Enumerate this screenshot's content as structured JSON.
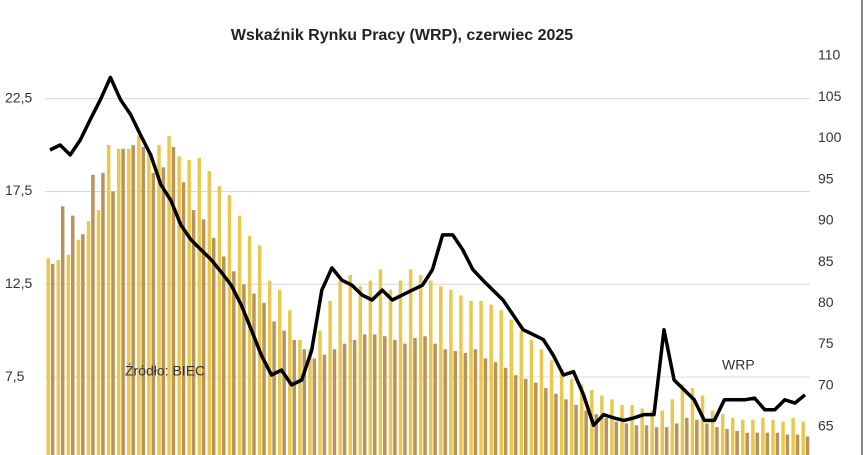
{
  "chart_data": {
    "type": "bar",
    "title": "Wskaźnik Rynku Pracy (WRP), czerwiec 2025",
    "annotations": [
      "Źródło: BIEC",
      "WRP"
    ],
    "categories": [
      null,
      null,
      null,
      null,
      null,
      null,
      null,
      null,
      null,
      null,
      null,
      null,
      null,
      null,
      null,
      null,
      null,
      null,
      null,
      null,
      null,
      null,
      null,
      null,
      null,
      null,
      null,
      null,
      null,
      null,
      null,
      null,
      null,
      null,
      null,
      null,
      null,
      null,
      null,
      null,
      null,
      null,
      null,
      null,
      null,
      null,
      null,
      null,
      null,
      null,
      null,
      null,
      null,
      null,
      null,
      null,
      null,
      null,
      null,
      null,
      null,
      null,
      null,
      null,
      null,
      null,
      null,
      null,
      null,
      null,
      null,
      null,
      null,
      null,
      null,
      null
    ],
    "series": [
      {
        "color": "#e9c84e",
        "values": [
          13.9,
          13.8,
          14.1,
          14.9,
          15.9,
          16.5,
          20,
          19.8,
          19.8,
          20.5,
          19.7,
          20,
          20.5,
          19.4,
          19.2,
          19.3,
          18.6,
          17.8,
          17.3,
          16.2,
          15.1,
          14.6,
          12.7,
          12.2,
          11.1,
          9.5,
          9.0,
          10.0,
          11.6,
          12.7,
          13.0,
          12.4,
          12.7,
          13.3,
          12.2,
          12.7,
          13.3,
          13.0,
          12.7,
          12.4,
          12.2,
          11.9,
          11.6,
          11.6,
          11.4,
          11.1,
          10.6,
          10.0,
          9.5,
          9.0,
          8.4,
          7.9,
          7.4,
          7.1,
          6.8,
          6.5,
          6.3,
          6.0,
          6.0,
          5.8,
          5.7,
          5.7,
          6.3,
          7.1,
          6.9,
          6.5,
          5.7,
          5.5,
          5.3,
          5.2,
          5.2,
          5.3,
          5.2,
          5.1,
          5.3,
          5.1
        ]
      },
      {
        "color": "#b8935a",
        "values": [
          13.6,
          16.7,
          16.2,
          15.2,
          18.4,
          18.5,
          17.5,
          19.8,
          20,
          19.9,
          18.5,
          18.8,
          19.9,
          18.0,
          16.5,
          16,
          15,
          14,
          13.2,
          12.5,
          12,
          11.5,
          10.5,
          10,
          9.5,
          9,
          8.5,
          8.7,
          9.0,
          9.3,
          9.5,
          9.8,
          9.8,
          9.7,
          9.5,
          9.3,
          9.6,
          9.7,
          9.3,
          9.0,
          8.9,
          8.8,
          9.0,
          8.5,
          8.3,
          8.0,
          7.6,
          7.4,
          7.2,
          6.9,
          6.6,
          6.3,
          6.0,
          5.7,
          5.5,
          5.3,
          5.1,
          5.0,
          4.9,
          4.9,
          4.8,
          4.8,
          5.0,
          5.3,
          5.2,
          5.0,
          4.8,
          4.7,
          4.6,
          4.5,
          4.5,
          4.5,
          4.5,
          4.4,
          4.4,
          4.3
        ]
      },
      {
        "type": "line",
        "axis": "y2",
        "color": "#000000",
        "values": [
          98.6,
          99.2,
          98.0,
          99.8,
          102.3,
          104.7,
          107.4,
          104.7,
          102.9,
          100.4,
          98.0,
          94.4,
          92.5,
          89.5,
          87.7,
          86.5,
          85.3,
          83.8,
          82.2,
          79.8,
          76.8,
          73.7,
          71.3,
          71.9,
          70.1,
          70.7,
          74.3,
          81.6,
          84.3,
          82.8,
          82.2,
          81.0,
          80.4,
          81.6,
          80.4,
          81.0,
          81.6,
          82.2,
          84.1,
          88.3,
          88.3,
          86.5,
          84.1,
          82.8,
          81.6,
          80.4,
          78.6,
          76.8,
          76.2,
          75.6,
          73.7,
          71.3,
          71.7,
          68.9,
          65.2,
          66.5,
          66.1,
          65.8,
          66.1,
          66.5,
          66.5,
          76.8,
          70.7,
          69.5,
          68.3,
          65.8,
          65.8,
          68.3,
          68.3,
          68.3,
          68.5,
          67.1,
          67.1,
          68.3,
          67.9,
          68.9
        ]
      }
    ],
    "ylim": [
      3.3,
      24.8
    ],
    "yticks": [
      {
        "value": 7.5,
        "label": "7,5"
      },
      {
        "value": 12.5,
        "label": "12,5"
      },
      {
        "value": 17.5,
        "label": "17,5"
      },
      {
        "value": 22.5,
        "label": "22,5"
      }
    ],
    "y2lim": [
      61.6,
      110
    ],
    "y2ticks": [
      65,
      70,
      75,
      80,
      85,
      90,
      95,
      100,
      105,
      110
    ],
    "grid": true
  }
}
